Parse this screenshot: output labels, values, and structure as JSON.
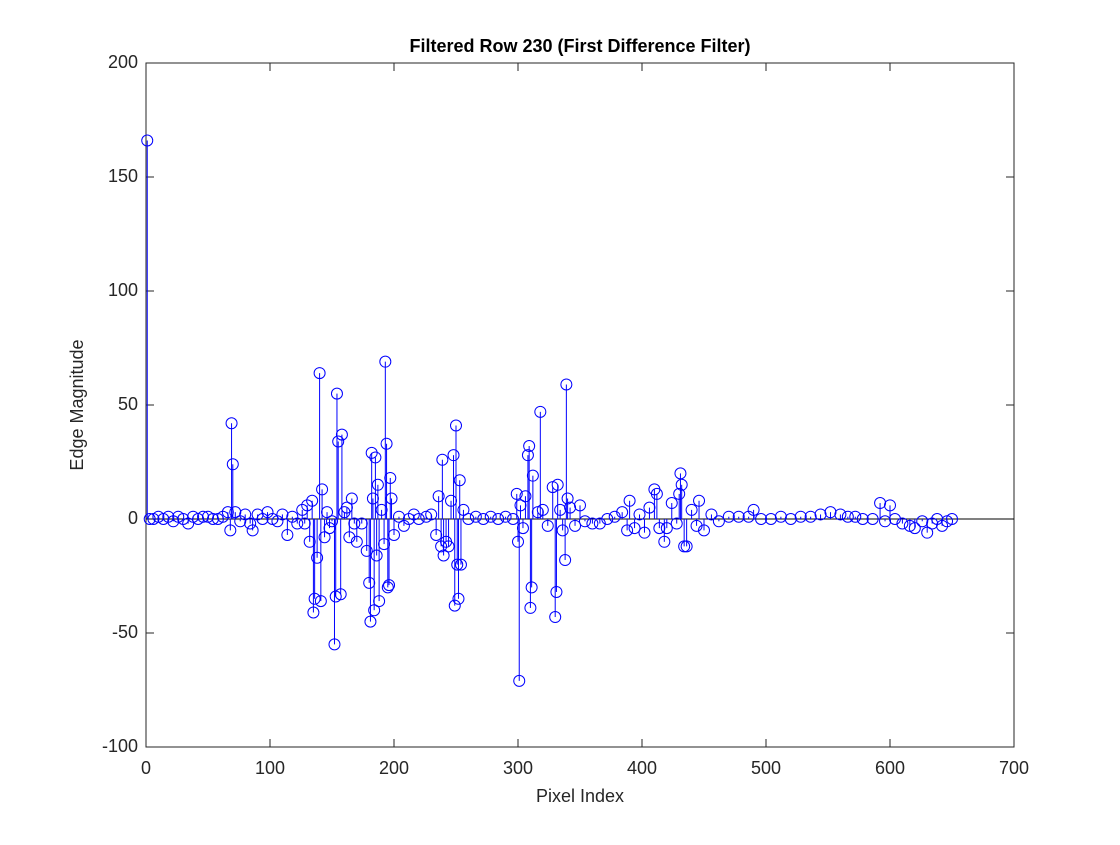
{
  "chart_data": {
    "type": "stem",
    "title": "Filtered Row 230 (First Difference Filter)",
    "x_label": "Pixel Index",
    "y_label": "Edge Magnitude",
    "color": "#0000ff",
    "xlim": [
      0,
      700
    ],
    "xticks": [
      0,
      100,
      200,
      300,
      400,
      500,
      600,
      700
    ],
    "ylim": [
      -100,
      200
    ],
    "yticks": [
      -100,
      -50,
      0,
      50,
      100,
      150,
      200
    ],
    "x": [
      1,
      3,
      6,
      10,
      14,
      18,
      22,
      26,
      30,
      34,
      38,
      42,
      46,
      50,
      54,
      58,
      62,
      66,
      68,
      69,
      70,
      72,
      76,
      80,
      84,
      86,
      90,
      94,
      98,
      102,
      106,
      110,
      114,
      118,
      122,
      126,
      128,
      130,
      132,
      134,
      135,
      136,
      138,
      140,
      141,
      142,
      144,
      146,
      148,
      150,
      152,
      153,
      154,
      155,
      157,
      158,
      160,
      162,
      164,
      166,
      168,
      170,
      174,
      178,
      180,
      181,
      182,
      183,
      184,
      185,
      186,
      187,
      188,
      190,
      192,
      193,
      194,
      195,
      196,
      197,
      198,
      200,
      204,
      208,
      212,
      216,
      220,
      226,
      230,
      234,
      236,
      238,
      239,
      240,
      242,
      244,
      246,
      248,
      249,
      250,
      251,
      252,
      253,
      254,
      256,
      260,
      266,
      272,
      278,
      284,
      290,
      296,
      299,
      300,
      301,
      302,
      304,
      306,
      308,
      309,
      310,
      311,
      312,
      316,
      318,
      320,
      324,
      328,
      330,
      331,
      332,
      334,
      336,
      338,
      339,
      340,
      342,
      346,
      350,
      354,
      360,
      366,
      372,
      378,
      384,
      388,
      390,
      394,
      398,
      402,
      406,
      410,
      412,
      414,
      418,
      420,
      424,
      428,
      430,
      431,
      432,
      434,
      436,
      440,
      444,
      446,
      450,
      456,
      462,
      470,
      478,
      486,
      490,
      496,
      504,
      512,
      520,
      528,
      536,
      544,
      552,
      560,
      566,
      572,
      578,
      586,
      592,
      596,
      600,
      604,
      610,
      616,
      620,
      626,
      630,
      634,
      638,
      642,
      646,
      650
    ],
    "values": [
      166,
      0,
      0,
      1,
      0,
      1,
      -1,
      1,
      0,
      -2,
      1,
      0,
      1,
      1,
      0,
      0,
      1,
      3,
      -5,
      42,
      24,
      3,
      -1,
      2,
      -2,
      -5,
      2,
      0,
      3,
      0,
      -1,
      2,
      -7,
      1,
      -2,
      4,
      -2,
      6,
      -10,
      8,
      -41,
      -35,
      -17,
      64,
      -36,
      13,
      -8,
      3,
      -4,
      -1,
      -55,
      -34,
      55,
      34,
      -33,
      37,
      3,
      5,
      -8,
      9,
      -2,
      -10,
      -2,
      -14,
      -28,
      -45,
      29,
      9,
      -40,
      27,
      -16,
      15,
      -36,
      4,
      -11,
      69,
      33,
      -30,
      -29,
      18,
      9,
      -7,
      1,
      -3,
      0,
      2,
      0,
      1,
      2,
      -7,
      10,
      -12,
      26,
      -16,
      -10,
      -12,
      8,
      28,
      -38,
      41,
      -20,
      -35,
      17,
      -20,
      4,
      0,
      1,
      0,
      1,
      0,
      1,
      0,
      11,
      -10,
      -71,
      6,
      -4,
      10,
      28,
      32,
      -39,
      -30,
      19,
      3,
      47,
      4,
      -3,
      14,
      -43,
      -32,
      15,
      4,
      -5,
      -18,
      59,
      9,
      5,
      -3,
      6,
      -1,
      -2,
      -2,
      0,
      1,
      3,
      -5,
      8,
      -4,
      2,
      -6,
      5,
      13,
      11,
      -4,
      -10,
      -4,
      7,
      -2,
      11,
      20,
      15,
      -12,
      -12,
      4,
      -3,
      8,
      -5,
      2,
      -1,
      1,
      1,
      1,
      4,
      0,
      0,
      1,
      0,
      1,
      1,
      2,
      3,
      2,
      1,
      1,
      0,
      0,
      7,
      -1,
      6,
      0,
      -2,
      -3,
      -4,
      -1,
      -6,
      -2,
      0,
      -3,
      -1,
      0
    ]
  }
}
